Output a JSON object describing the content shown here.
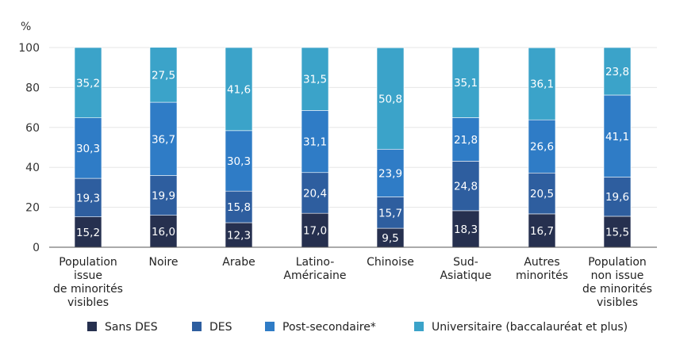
{
  "chart_data": {
    "type": "bar",
    "stacked": true,
    "title": "",
    "ylabel": "%",
    "xlabel": "",
    "ylim": [
      0,
      100
    ],
    "yticks": [
      0,
      20,
      40,
      60,
      80,
      100
    ],
    "grid": true,
    "legend_position": "bottom",
    "categories": [
      [
        "Population",
        "issue",
        "de minorités",
        "visibles"
      ],
      [
        "Noire"
      ],
      [
        "Arabe"
      ],
      [
        "Latino-",
        "Américaine"
      ],
      [
        "Chinoise"
      ],
      [
        "Sud-",
        "Asiatique"
      ],
      [
        "Autres",
        "minorités"
      ],
      [
        "Population",
        "non issue",
        "de minorités",
        "visibles"
      ]
    ],
    "series": [
      {
        "name": "Sans DES",
        "color": "#26304f",
        "values": [
          15.2,
          16.0,
          12.3,
          17.0,
          9.5,
          18.3,
          16.7,
          15.5
        ],
        "labels": [
          "15,2",
          "16,0",
          "12,3",
          "17,0",
          "9,5",
          "18,3",
          "16,7",
          "15,5"
        ]
      },
      {
        "name": "DES",
        "color": "#2e5e9f",
        "values": [
          19.3,
          19.9,
          15.8,
          20.4,
          15.7,
          24.8,
          20.5,
          19.6
        ],
        "labels": [
          "19,3",
          "19,9",
          "15,8",
          "20,4",
          "15,7",
          "24,8",
          "20,5",
          "19,6"
        ]
      },
      {
        "name": "Post-secondaire*",
        "color": "#2f7cc6",
        "values": [
          30.3,
          36.7,
          30.3,
          31.1,
          23.9,
          21.8,
          26.6,
          41.1
        ],
        "labels": [
          "30,3",
          "36,7",
          "30,3",
          "31,1",
          "23,9",
          "21,8",
          "26,6",
          "41,1"
        ]
      },
      {
        "name": "Universitaire (baccalauréat et plus)",
        "color": "#3ba3c9",
        "values": [
          35.2,
          27.5,
          41.6,
          31.5,
          50.8,
          35.1,
          36.1,
          23.8
        ],
        "labels": [
          "35,2",
          "27,5",
          "41,6",
          "31,5",
          "50,8",
          "35,1",
          "36,1",
          "23,8"
        ]
      }
    ],
    "grid_color": "#e6e6e6",
    "axis_color": "#555555"
  }
}
